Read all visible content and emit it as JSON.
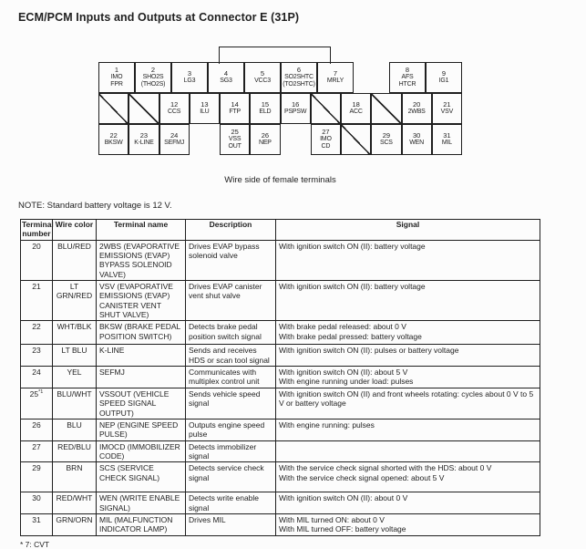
{
  "title": "ECM/PCM Inputs and Outputs at Connector E (31P)",
  "connector": {
    "caption": "Wire side of female terminals",
    "pins": {
      "p1": {
        "num": "1",
        "lines": [
          "IMO",
          "FPR"
        ]
      },
      "p2": {
        "num": "2",
        "lines": [
          "SHO2S",
          "(THO2S)"
        ]
      },
      "p3": {
        "num": "3",
        "lines": [
          "LG3"
        ]
      },
      "p4": {
        "num": "4",
        "lines": [
          "SG3"
        ]
      },
      "p5": {
        "num": "5",
        "lines": [
          "VCC3"
        ]
      },
      "p6": {
        "num": "6",
        "lines": [
          "SO2SHTC",
          "(TO2SHTC)"
        ]
      },
      "p7": {
        "num": "7",
        "lines": [
          "MRLY"
        ]
      },
      "p8": {
        "num": "8",
        "lines": [
          "AFS",
          "HTCR"
        ]
      },
      "p9": {
        "num": "9",
        "lines": [
          "IG1"
        ]
      },
      "p12": {
        "num": "12",
        "lines": [
          "CCS"
        ]
      },
      "p13": {
        "num": "13",
        "lines": [
          "ILU"
        ]
      },
      "p14": {
        "num": "14",
        "lines": [
          "FTP"
        ]
      },
      "p15": {
        "num": "15",
        "lines": [
          "ELD"
        ]
      },
      "p16": {
        "num": "16",
        "lines": [
          "PSPSW"
        ]
      },
      "p18": {
        "num": "18",
        "lines": [
          "ACC"
        ]
      },
      "p20": {
        "num": "20",
        "lines": [
          "2WBS"
        ]
      },
      "p21": {
        "num": "21",
        "lines": [
          "VSV"
        ]
      },
      "p22": {
        "num": "22",
        "lines": [
          "BKSW"
        ]
      },
      "p23": {
        "num": "23",
        "lines": [
          "K-LINE"
        ]
      },
      "p24": {
        "num": "24",
        "lines": [
          "SEFMJ"
        ]
      },
      "p25": {
        "num": "25",
        "lines": [
          "VSS",
          "OUT"
        ]
      },
      "p26": {
        "num": "26",
        "lines": [
          "NEP"
        ]
      },
      "p27": {
        "num": "27",
        "lines": [
          "IMO",
          "CD"
        ]
      },
      "p29": {
        "num": "29",
        "lines": [
          "SCS"
        ]
      },
      "p30": {
        "num": "30",
        "lines": [
          "WEN"
        ]
      },
      "p31": {
        "num": "31",
        "lines": [
          "MIL"
        ]
      }
    }
  },
  "note": "NOTE: Standard battery voltage is 12 V.",
  "table": {
    "headers": [
      "Terminal number",
      "Wire color",
      "Terminal name",
      "Description",
      "Signal"
    ],
    "rows": [
      {
        "terminal": "20",
        "wire": "BLU/RED",
        "name": "2WBS (EVAPORATIVE EMISSIONS (EVAP) BYPASS SOLENOID VALVE)",
        "desc": "Drives EVAP bypass solenoid valve",
        "signal": [
          "With ignition switch ON (II): battery voltage"
        ]
      },
      {
        "terminal": "21",
        "wire": "LT GRN/RED",
        "name": "VSV (EVAPORATIVE EMISSIONS (EVAP) CANISTER VENT SHUT VALVE)",
        "desc": "Drives EVAP canister vent shut valve",
        "signal": [
          "With ignition switch ON (II): battery voltage"
        ]
      },
      {
        "terminal": "22",
        "wire": "WHT/BLK",
        "name": "BKSW (BRAKE PEDAL POSITION SWITCH)",
        "desc": "Detects brake pedal position switch signal",
        "signal": [
          "With brake pedal released: about 0 V",
          "With brake pedal pressed: battery voltage"
        ]
      },
      {
        "terminal": "23",
        "wire": "LT BLU",
        "name": "K-LINE",
        "desc": "Sends and receives HDS or scan tool signal",
        "signal": [
          "With ignition switch ON (II): pulses or battery voltage"
        ]
      },
      {
        "terminal": "24",
        "wire": "YEL",
        "name": "SEFMJ",
        "desc": "Communicates with multiplex control unit",
        "signal": [
          "With ignition switch ON (II): about 5 V",
          "With engine running under load: pulses"
        ]
      },
      {
        "terminal": "25",
        "sup": "*1",
        "wire": "BLU/WHT",
        "name": "VSSOUT (VEHICLE SPEED SIGNAL OUTPUT)",
        "desc": "Sends vehicle speed signal",
        "signal": [
          "With ignition switch ON (II) and front wheels rotating: cycles about 0 V to 5 V or battery voltage"
        ]
      },
      {
        "terminal": "26",
        "wire": "BLU",
        "name": "NEP (ENGINE SPEED PULSE)",
        "desc": "Outputs engine speed pulse",
        "signal": [
          "With engine running: pulses"
        ]
      },
      {
        "terminal": "27",
        "wire": "RED/BLU",
        "name": "IMOCD (IMMOBILIZER CODE)",
        "desc": "Detects immobilizer signal",
        "signal": []
      },
      {
        "terminal": "29",
        "wire": "BRN",
        "name": "SCS (SERVICE CHECK SIGNAL)",
        "desc": "Detects service check signal",
        "signal": [
          "With the service check signal shorted with the HDS: about 0 V",
          "With the service check signal opened: about 5 V"
        ]
      },
      {
        "terminal": "30",
        "wire": "RED/WHT",
        "name": "WEN (WRITE ENABLE SIGNAL)",
        "desc": "Detects write enable signal",
        "signal": [
          "With ignition switch ON (II): about 0 V"
        ]
      },
      {
        "terminal": "31",
        "wire": "GRN/ORN",
        "name": "MIL (MALFUNCTION INDICATOR LAMP)",
        "desc": "Drives MIL",
        "signal": [
          "With MIL turned ON: about 0 V",
          "With MIL turned OFF: battery voltage"
        ]
      }
    ]
  },
  "footnote": "* 7: CVT"
}
